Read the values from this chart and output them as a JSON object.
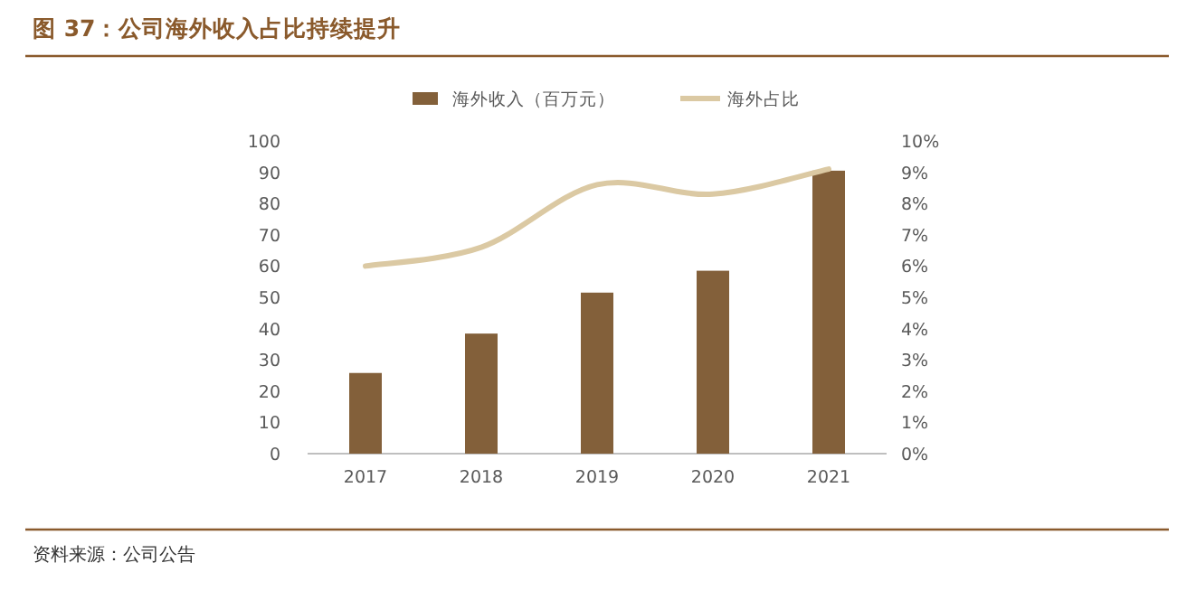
{
  "chart_data": {
    "type": "bar",
    "title": "图 37：公司海外收入占比持续提升",
    "annotations": [
      "资料来源：公司公告"
    ],
    "categories": [
      "2017",
      "2018",
      "2019",
      "2020",
      "2021"
    ],
    "series": [
      {
        "name": "海外收入（百万元）",
        "color": "#83603a",
        "values": [
          25.8,
          38.4,
          51.5,
          58.5,
          90.5
        ]
      },
      {
        "name": "海外占比",
        "type": "line",
        "axis": "y2",
        "color": "#dbc9a3",
        "values": [
          6.0,
          6.6,
          8.6,
          8.3,
          9.1
        ]
      }
    ],
    "ylim": [
      0,
      100
    ],
    "yticks": [
      0,
      10,
      20,
      30,
      40,
      50,
      60,
      70,
      80,
      90,
      100
    ],
    "y2lim": [
      0,
      10
    ],
    "y2ticks": [
      {
        "value": 0,
        "label": "0%"
      },
      {
        "value": 1,
        "label": "1%"
      },
      {
        "value": 2,
        "label": "2%"
      },
      {
        "value": 3,
        "label": "3%"
      },
      {
        "value": 4,
        "label": "4%"
      },
      {
        "value": 5,
        "label": "5%"
      },
      {
        "value": 6,
        "label": "6%"
      },
      {
        "value": 7,
        "label": "7%"
      },
      {
        "value": 8,
        "label": "8%"
      },
      {
        "value": 9,
        "label": "9%"
      },
      {
        "value": 10,
        "label": "10%"
      }
    ],
    "legend": "top",
    "grid": false
  }
}
